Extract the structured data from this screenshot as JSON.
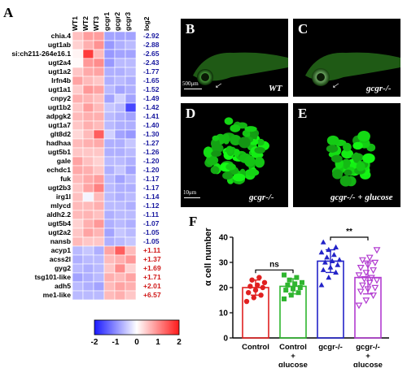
{
  "panelA": {
    "letter": "A",
    "columns": [
      "WT1",
      "WT2",
      "WT3",
      "gcgr1",
      "gcgr2",
      "gcgr3"
    ],
    "log2_header": "log2",
    "genes": [
      {
        "name": "chia.4",
        "fc": "-2.92",
        "z": [
          0.55,
          0.85,
          0.85,
          -0.8,
          -0.8,
          -0.8
        ]
      },
      {
        "name": "ugt1ab",
        "fc": "-2.88",
        "z": [
          0.4,
          0.7,
          0.95,
          -0.9,
          -0.7,
          -0.6
        ]
      },
      {
        "name": "si:ch211-264e16.1",
        "fc": "-2.65",
        "z": [
          0.1,
          1.7,
          0.6,
          -0.9,
          -0.8,
          -0.8
        ]
      },
      {
        "name": "ugt2a4",
        "fc": "-2.43",
        "z": [
          0.05,
          0.9,
          1.0,
          -0.9,
          -0.6,
          -0.6
        ]
      },
      {
        "name": "ugt1a2",
        "fc": "-1.77",
        "z": [
          0.5,
          0.75,
          0.8,
          -0.7,
          -0.7,
          -0.6
        ]
      },
      {
        "name": "lrfn4b",
        "fc": "-1.65",
        "z": [
          0.8,
          0.6,
          0.5,
          -0.7,
          -0.6,
          -0.7
        ]
      },
      {
        "name": "ugt1a1",
        "fc": "-1.52",
        "z": [
          0.45,
          0.9,
          0.8,
          -0.6,
          -0.8,
          -0.7
        ]
      },
      {
        "name": "cnpy2",
        "fc": "-1.49",
        "z": [
          0.7,
          0.65,
          0.55,
          -0.8,
          -0.4,
          -0.8
        ]
      },
      {
        "name": "ugt1b2",
        "fc": "-1.42",
        "z": [
          0.5,
          0.85,
          0.6,
          -0.5,
          -0.6,
          -1.6
        ]
      },
      {
        "name": "adpgk2",
        "fc": "-1.41",
        "z": [
          0.6,
          0.7,
          0.7,
          -0.6,
          -0.7,
          -0.8
        ]
      },
      {
        "name": "ugt1a7",
        "fc": "-1.40",
        "z": [
          0.5,
          0.7,
          0.6,
          -0.6,
          -0.7,
          -0.7
        ]
      },
      {
        "name": "glt8d2",
        "fc": "-1.30",
        "z": [
          0.35,
          0.6,
          1.4,
          -0.4,
          -0.8,
          -0.9
        ]
      },
      {
        "name": "hadhaa",
        "fc": "-1.27",
        "z": [
          0.6,
          0.7,
          0.75,
          -0.7,
          -0.7,
          -0.5
        ]
      },
      {
        "name": "ugt5b1",
        "fc": "-1.26",
        "z": [
          0.5,
          0.5,
          0.5,
          -0.7,
          -0.7,
          -0.6
        ]
      },
      {
        "name": "gale",
        "fc": "-1.20",
        "z": [
          0.8,
          0.55,
          0.4,
          -0.6,
          -0.6,
          -0.7
        ]
      },
      {
        "name": "echdc1",
        "fc": "-1.20",
        "z": [
          0.75,
          0.7,
          0.5,
          -0.7,
          -0.5,
          -0.8
        ]
      },
      {
        "name": "fuk",
        "fc": "-1.17",
        "z": [
          0.6,
          0.75,
          0.85,
          -0.6,
          -0.8,
          -0.6
        ]
      },
      {
        "name": "ugt2b3",
        "fc": "-1.17",
        "z": [
          0.5,
          0.8,
          1.1,
          -0.6,
          -0.7,
          -0.7
        ]
      },
      {
        "name": "irg1l",
        "fc": "-1.14",
        "z": [
          0.55,
          -0.1,
          0.6,
          -0.6,
          -0.7,
          -0.6
        ]
      },
      {
        "name": "mlycd",
        "fc": "-1.12",
        "z": [
          0.6,
          0.6,
          0.7,
          -0.6,
          -0.6,
          -0.7
        ]
      },
      {
        "name": "aldh2.2",
        "fc": "-1.11",
        "z": [
          0.6,
          0.65,
          0.55,
          -0.7,
          -0.6,
          -0.6
        ]
      },
      {
        "name": "ugt5b4",
        "fc": "-1.07",
        "z": [
          0.4,
          0.7,
          0.9,
          -0.7,
          -0.6,
          -0.7
        ]
      },
      {
        "name": "ugt2a2",
        "fc": "-1.05",
        "z": [
          0.5,
          0.8,
          0.65,
          -0.8,
          -0.5,
          -0.6
        ]
      },
      {
        "name": "nansb",
        "fc": "-1.05",
        "z": [
          0.6,
          0.5,
          0.5,
          -0.7,
          -0.6,
          -0.5
        ]
      },
      {
        "name": "acyp1",
        "fc": "+1.11",
        "z": [
          -0.6,
          -0.5,
          -0.7,
          0.8,
          1.4,
          0.6
        ]
      },
      {
        "name": "acss2l",
        "fc": "+1.37",
        "z": [
          -0.7,
          -0.6,
          -0.6,
          0.6,
          0.7,
          0.9
        ]
      },
      {
        "name": "gyg2",
        "fc": "+1.69",
        "z": [
          -0.6,
          -0.7,
          -0.6,
          0.5,
          1.0,
          0.4
        ]
      },
      {
        "name": "tsg101-like",
        "fc": "+1.71",
        "z": [
          -0.8,
          -0.7,
          -0.6,
          0.7,
          0.6,
          0.8
        ]
      },
      {
        "name": "adh5",
        "fc": "+2.01",
        "z": [
          -0.6,
          -0.7,
          -0.8,
          0.6,
          0.8,
          0.7
        ]
      },
      {
        "name": "me1-like",
        "fc": "+6.57",
        "z": [
          -0.6,
          -0.6,
          -0.6,
          0.6,
          0.7,
          0.5
        ]
      }
    ],
    "colorbar": {
      "ticks": [
        "-2",
        "-1",
        "0",
        "1",
        "2"
      ],
      "min": -2,
      "max": 2,
      "low_color": "#1a1aff",
      "mid_color": "#ffffff",
      "high_color": "#ff1a1a"
    },
    "negative_color": "#1a1aa0",
    "positive_color": "#d01818"
  },
  "microscopy": {
    "B": {
      "letter": "B",
      "caption": "WT",
      "scale": "500μm"
    },
    "C": {
      "letter": "C",
      "caption": "gcgr-/-"
    },
    "D": {
      "letter": "D",
      "caption": "gcgr-/-",
      "scale": "10μm"
    },
    "E": {
      "letter": "E",
      "caption": "gcgr-/- + glucose"
    }
  },
  "panelF": {
    "letter": "F",
    "ylabel": "α cell number",
    "significance": [
      "ns",
      "**"
    ],
    "chart_data": {
      "type": "bar",
      "categories": [
        "Control",
        "Control + glucose",
        "gcgr-/-",
        "gcgr-/- + glucose"
      ],
      "values": [
        20,
        20.5,
        30.5,
        24
      ],
      "errors": [
        3,
        3,
        4.5,
        6.5
      ],
      "colors": [
        "#e02020",
        "#2fb52f",
        "#2323c8",
        "#b23cd0"
      ],
      "ylabel": "α cell number",
      "ylim": [
        0,
        40
      ],
      "yticks": [
        0,
        10,
        20,
        30,
        40
      ],
      "points": [
        [
          14.5,
          16,
          17,
          18,
          19,
          20,
          20.5,
          21,
          22,
          23,
          24
        ],
        [
          15.5,
          17,
          18,
          19,
          19.5,
          20,
          21,
          21.5,
          22,
          23,
          24,
          25
        ],
        [
          21,
          24,
          26,
          27,
          28,
          29,
          30,
          30.5,
          31,
          32,
          33,
          34,
          35,
          36,
          38
        ],
        [
          13,
          15,
          17,
          18.5,
          19.5,
          20,
          21,
          22,
          23,
          23.5,
          24,
          25,
          26,
          27,
          28,
          29,
          30,
          31,
          32,
          35
        ]
      ]
    }
  }
}
